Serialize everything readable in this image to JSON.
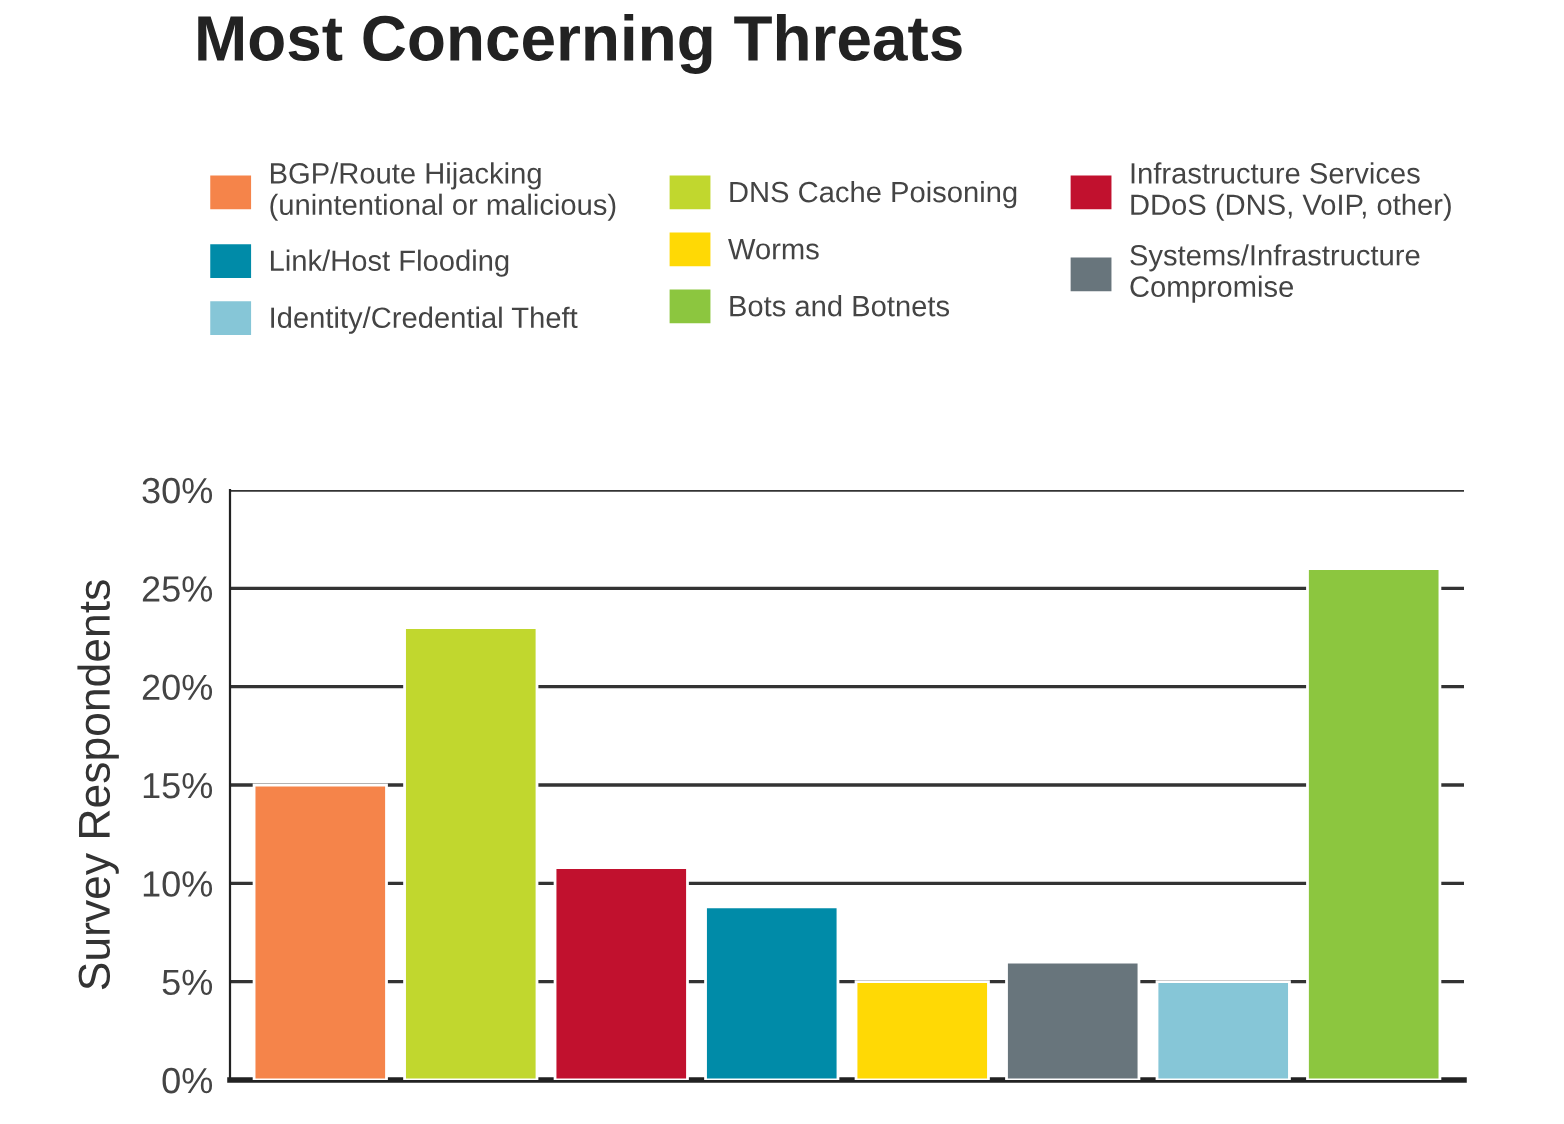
{
  "chart_data": {
    "type": "bar",
    "title": "Most Concerning Threats",
    "ylabel": "Survey Respondents",
    "categories": [
      null,
      null,
      null,
      null,
      null,
      null,
      null,
      null
    ],
    "series": [
      {
        "name": "BGP/Route Hijacking\n(unintentional or malicious)",
        "color": "#f5844a",
        "values": [
          15,
          null,
          null,
          null,
          null,
          null,
          null,
          null
        ]
      },
      {
        "name": "DNS Cache Poisoning",
        "color": "#c1d72e",
        "values": [
          null,
          23,
          null,
          null,
          null,
          null,
          null,
          null
        ]
      },
      {
        "name": "Infrastructure Services\nDDoS (DNS, VoIP, other)",
        "color": "#c1112e",
        "values": [
          null,
          null,
          10.8,
          null,
          null,
          null,
          null,
          null
        ]
      },
      {
        "name": "Link/Host Flooding",
        "color": "#008ba8",
        "values": [
          null,
          null,
          null,
          8.8,
          null,
          null,
          null,
          null
        ]
      },
      {
        "name": "Worms",
        "color": "#ffd905",
        "values": [
          null,
          null,
          null,
          null,
          5,
          null,
          null,
          null
        ]
      },
      {
        "name": "Systems/Infrastructure\nCompromise",
        "color": "#68757c",
        "values": [
          null,
          null,
          null,
          null,
          null,
          6,
          null,
          null
        ]
      },
      {
        "name": "Identity/Credential Theft",
        "color": "#86c6d7",
        "values": [
          null,
          null,
          null,
          null,
          null,
          null,
          5,
          null
        ]
      },
      {
        "name": "Bots and Botnets",
        "color": "#8cc63f",
        "values": [
          null,
          null,
          null,
          null,
          null,
          null,
          null,
          26
        ]
      }
    ],
    "ylim": [
      0,
      30
    ],
    "yticks": [
      {
        "value": 0,
        "label": "0%"
      },
      {
        "value": 5,
        "label": "5%"
      },
      {
        "value": 10,
        "label": "10%"
      },
      {
        "value": 15,
        "label": "15%"
      },
      {
        "value": 20,
        "label": "20%"
      },
      {
        "value": 25,
        "label": "25%"
      },
      {
        "value": 30,
        "label": "30%"
      }
    ],
    "grid": "y",
    "legend": "top"
  }
}
